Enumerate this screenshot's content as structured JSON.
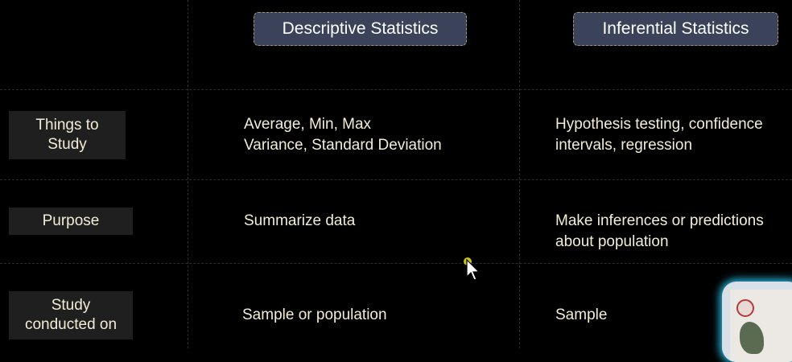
{
  "columns": {
    "descriptive": "Descriptive Statistics",
    "inferential": "Inferential Statistics"
  },
  "rows": [
    {
      "label_lines": [
        "Things to",
        "Study"
      ],
      "descriptive_lines": [
        "Average, Min, Max",
        "Variance, Standard Deviation"
      ],
      "inferential_lines": [
        "Hypothesis testing, confidence",
        "intervals, regression"
      ]
    },
    {
      "label_lines": [
        "Purpose"
      ],
      "descriptive_lines": [
        "Summarize data"
      ],
      "inferential_lines": [
        "Make inferences or predictions",
        "about population"
      ]
    },
    {
      "label_lines": [
        "Study",
        "conducted on"
      ],
      "descriptive_lines": [
        "Sample or population"
      ],
      "inferential_lines": [
        "Sample"
      ]
    }
  ],
  "colors": {
    "background": "#000000",
    "header_bg": "#3a4359",
    "label_bg": "#1f1f1f",
    "text": "#f3ecd6",
    "pointer_highlight": "#c9c21b"
  },
  "icons": {
    "pointer": "mouse-pointer-icon",
    "webcam": "webcam-overlay"
  }
}
